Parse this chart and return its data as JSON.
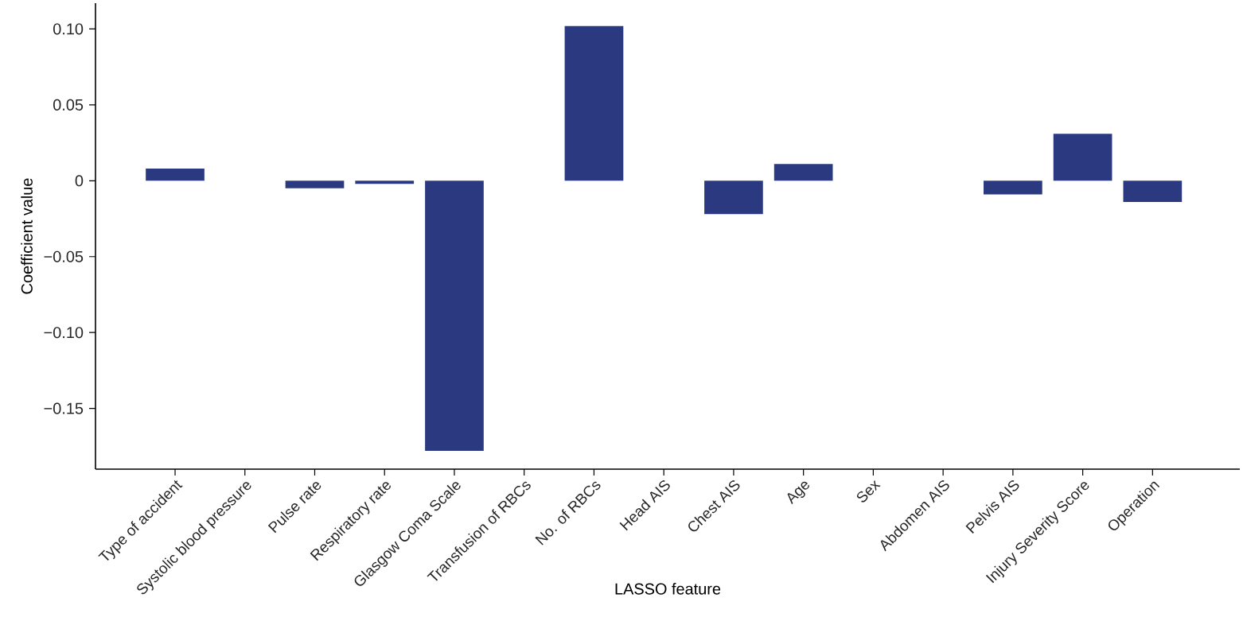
{
  "chart_data": {
    "type": "bar",
    "xlabel": "LASSO feature",
    "ylabel": "Coefficient value",
    "categories": [
      "Type of accident",
      "Systolic blood pressure",
      "Pulse rate",
      "Respiratory rate",
      "Glasgow Coma Scale",
      "Transfusion of RBCs",
      "No. of RBCs",
      "Head AIS",
      "Chest AIS",
      "Age",
      "Sex",
      "Abdomen AIS",
      "Pelvis AIS",
      "Injury Severity Score",
      "Operation"
    ],
    "values": [
      0.008,
      0,
      -0.005,
      -0.002,
      -0.178,
      0,
      0.102,
      0,
      -0.022,
      0.011,
      0,
      0,
      -0.009,
      0.031,
      -0.014
    ],
    "color": "#2b3a80",
    "ylim": [
      -0.19,
      0.117
    ],
    "yticks": [
      {
        "value": -0.15,
        "label": "−0.15"
      },
      {
        "value": -0.1,
        "label": "−0.10"
      },
      {
        "value": -0.05,
        "label": "−0.05"
      },
      0,
      {
        "value": 0.05,
        "label": "0.05"
      },
      {
        "value": 0.1,
        "label": "0.10"
      }
    ],
    "grid": false
  }
}
